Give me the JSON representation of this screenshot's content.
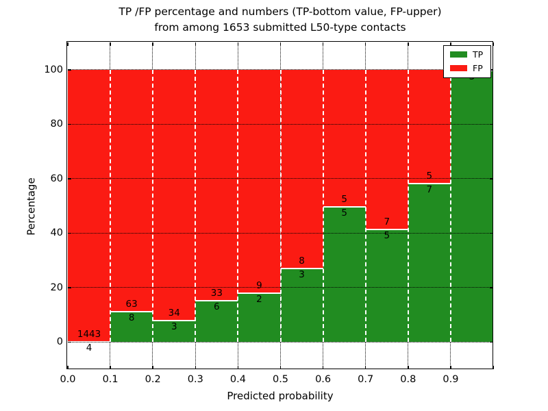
{
  "figure": {
    "title_line1": "TP /FP percentage and numbers (TP-bottom value, FP-upper)",
    "title_line2": "from among 1653 submitted L50-type contacts"
  },
  "axes": {
    "xlabel": "Predicted probability",
    "ylabel": "Percentage",
    "x_tick_labels": [
      "0.0",
      "0.1",
      "0.2",
      "0.3",
      "0.4",
      "0.5",
      "0.6",
      "0.7",
      "0.8",
      "0.9"
    ],
    "y_tick_labels": [
      "0",
      "20",
      "40",
      "60",
      "80",
      "100"
    ],
    "y_tick_values": [
      0,
      20,
      40,
      60,
      80,
      100
    ]
  },
  "legend": {
    "entries": [
      {
        "label": "TP",
        "color": "#218c21"
      },
      {
        "label": "FP",
        "color": "#fb1b13"
      }
    ]
  },
  "colors": {
    "tp": "#218c21",
    "fp": "#fb1b13",
    "bar_edge": "#ffffff",
    "grid": "#000000",
    "background": "#ffffff"
  },
  "chart_data": {
    "type": "bar",
    "stacked": true,
    "title": "TP /FP percentage and numbers (TP-bottom value, FP-upper) from among 1653 submitted L50-type contacts",
    "xlabel": "Predicted probability",
    "ylabel": "Percentage",
    "xlim": [
      0.0,
      1.0
    ],
    "ylim": [
      -10,
      110
    ],
    "grid": true,
    "legend_position": "upper right",
    "total_contacts": 1653,
    "bin_edges": [
      0.0,
      0.1,
      0.2,
      0.3,
      0.4,
      0.5,
      0.6,
      0.7,
      0.8,
      0.9,
      1.0
    ],
    "series": [
      {
        "name": "TP",
        "color": "#218c21",
        "counts": [
          4,
          8,
          3,
          6,
          2,
          3,
          5,
          5,
          7,
          3
        ],
        "percent": [
          0.28,
          11.27,
          8.11,
          15.38,
          18.18,
          27.27,
          50.0,
          41.67,
          58.33,
          100.0
        ]
      },
      {
        "name": "FP",
        "color": "#fb1b13",
        "counts": [
          1443,
          63,
          34,
          33,
          9,
          8,
          5,
          7,
          5,
          0
        ],
        "percent": [
          99.72,
          88.73,
          91.89,
          84.62,
          81.82,
          72.73,
          50.0,
          58.33,
          41.67,
          0.0
        ]
      }
    ]
  }
}
